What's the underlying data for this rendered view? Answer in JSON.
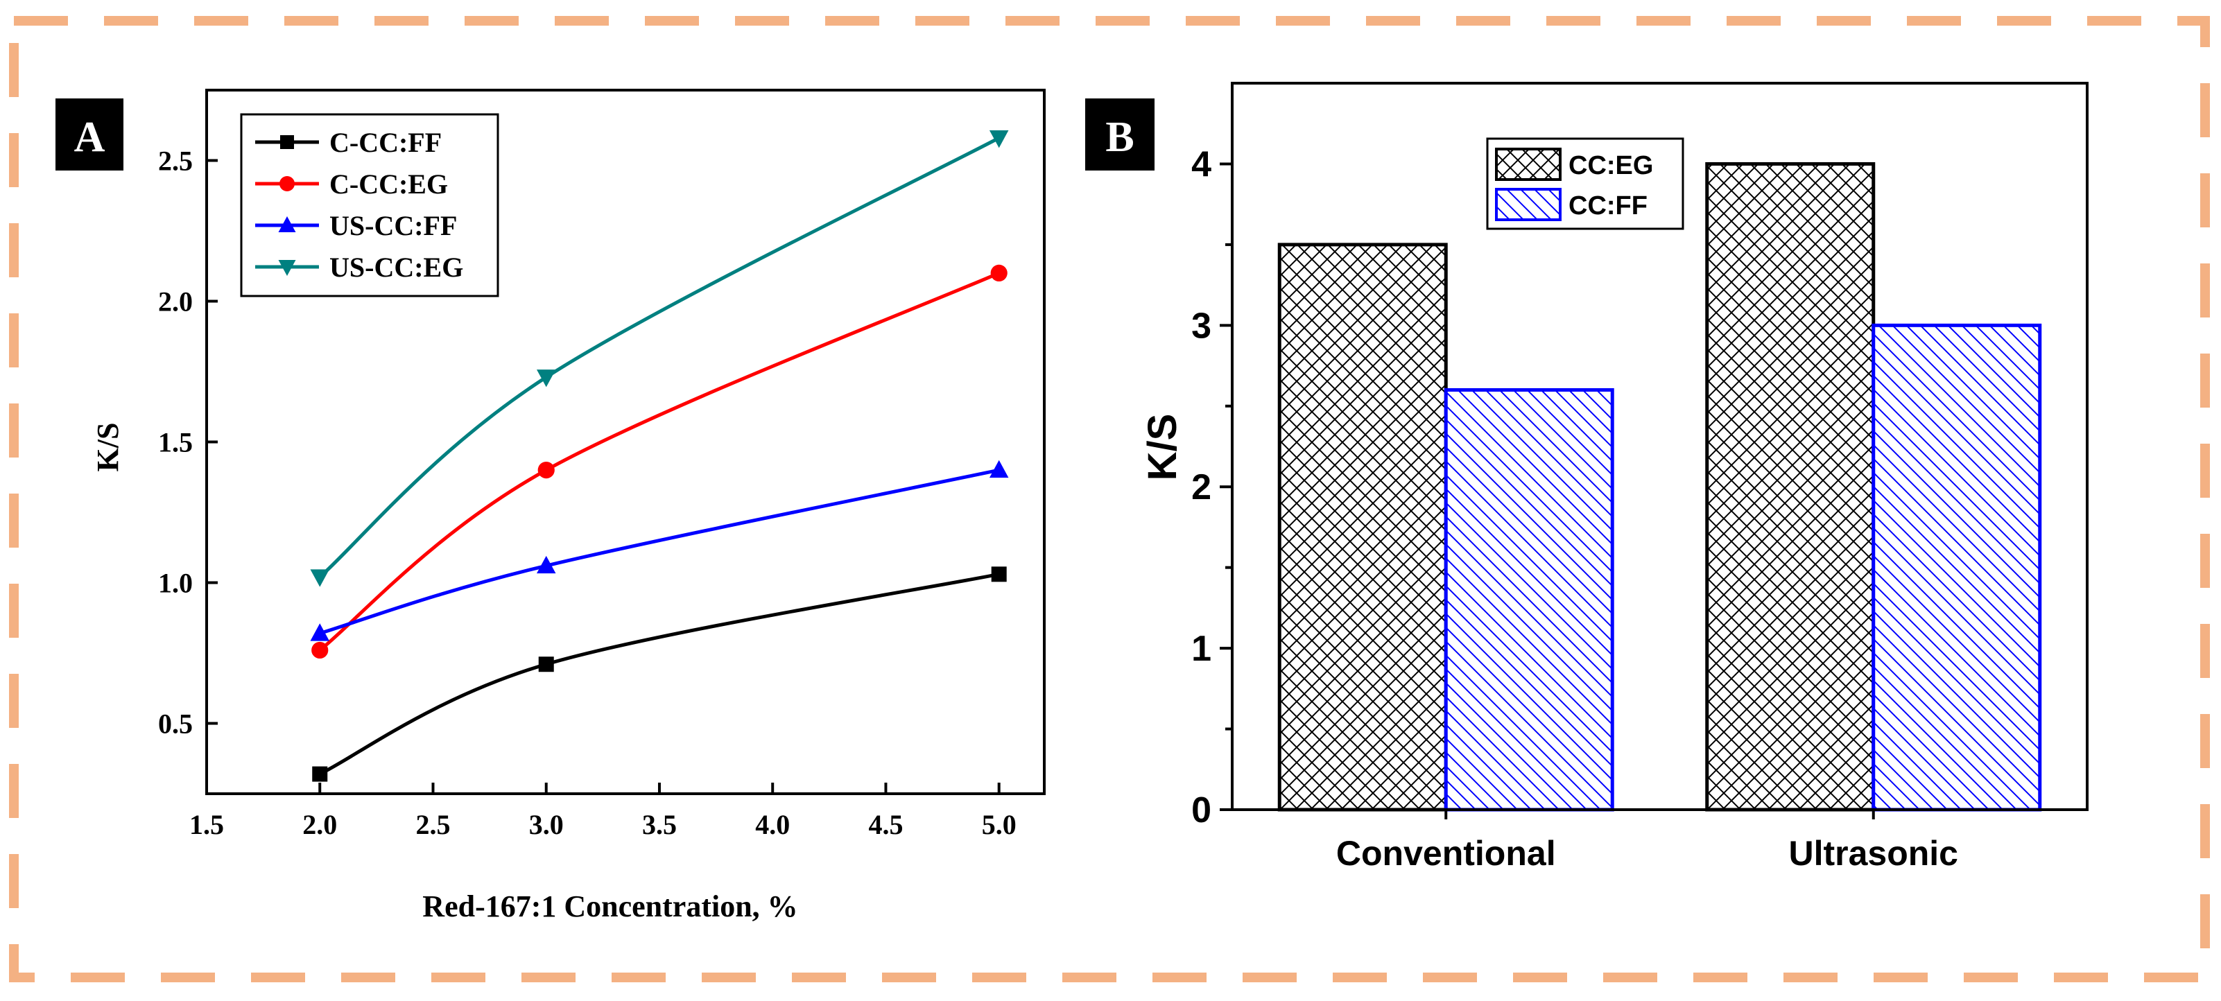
{
  "frame_color": "#F4B183",
  "chart_data": [
    {
      "panel": "A",
      "type": "line",
      "title": "",
      "xlabel": "Red-167:1 Concentration, %",
      "ylabel": "K/S",
      "xlim": [
        1.5,
        5.2
      ],
      "ylim": [
        0.25,
        2.75
      ],
      "xticks": [
        1.5,
        2.0,
        2.5,
        3.0,
        3.5,
        4.0,
        4.5,
        5.0
      ],
      "xtick_labels": [
        "1.5",
        "2.0",
        "2.5",
        "3.0",
        "3.5",
        "4.0",
        "4.5",
        "5.0"
      ],
      "yticks": [
        0.5,
        1.0,
        1.5,
        2.0,
        2.5
      ],
      "ytick_labels": [
        "0.5",
        "1.0",
        "1.5",
        "2.0",
        "2.5"
      ],
      "grid": false,
      "legend_position": "top-left",
      "x": [
        2.0,
        3.0,
        5.0
      ],
      "series": [
        {
          "name": "C-CC:FF",
          "values": [
            0.32,
            0.71,
            1.03
          ],
          "color": "#000000",
          "marker": "square"
        },
        {
          "name": "C-CC:EG",
          "values": [
            0.76,
            1.4,
            2.1
          ],
          "color": "#FF0000",
          "marker": "circle"
        },
        {
          "name": "US-CC:FF",
          "values": [
            0.82,
            1.06,
            1.4
          ],
          "color": "#0000FF",
          "marker": "triangle-up"
        },
        {
          "name": "US-CC:EG",
          "values": [
            1.02,
            1.73,
            2.58
          ],
          "color": "#008080",
          "marker": "triangle-down"
        }
      ]
    },
    {
      "panel": "B",
      "type": "bar",
      "title": "",
      "xlabel": "",
      "ylabel": "K/S",
      "categories": [
        "Conventional",
        "Ultrasonic"
      ],
      "ylim": [
        0,
        4.5
      ],
      "yticks": [
        0,
        1,
        2,
        3,
        4
      ],
      "ytick_labels": [
        "0",
        "1",
        "2",
        "3",
        "4"
      ],
      "grid": false,
      "legend_position": "top-center",
      "series": [
        {
          "name": "CC:EG",
          "values": [
            3.5,
            4.0
          ],
          "color": "#000000",
          "pattern": "crosshatch"
        },
        {
          "name": "CC:FF",
          "values": [
            2.6,
            3.0
          ],
          "color": "#0000FF",
          "pattern": "diagonal"
        }
      ]
    }
  ]
}
